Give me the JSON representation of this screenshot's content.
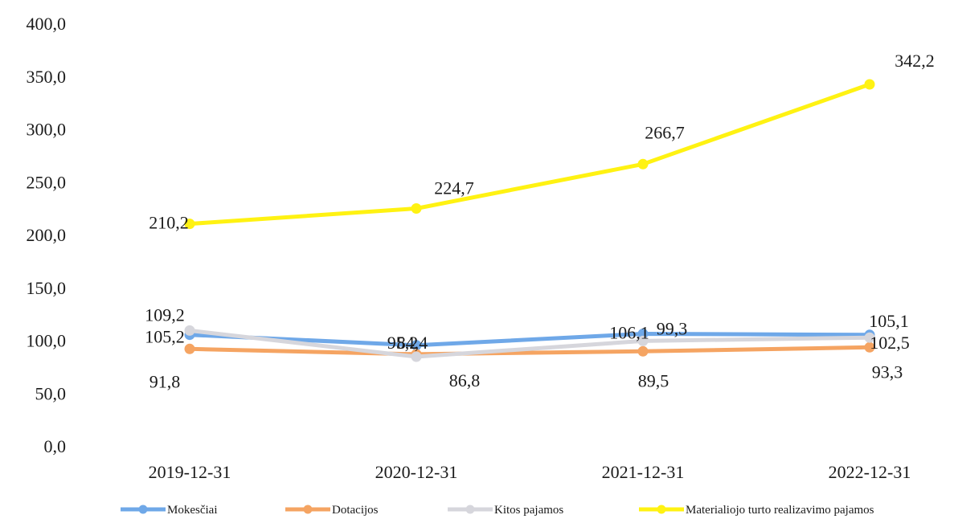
{
  "chart_data": {
    "type": "line",
    "categories": [
      "2019-12-31",
      "2020-12-31",
      "2021-12-31",
      "2022-12-31"
    ],
    "ylim": [
      0,
      400
    ],
    "y_ticks": [
      "0,0",
      "50,0",
      "100,0",
      "150,0",
      "200,0",
      "250,0",
      "300,0",
      "350,0",
      "400,0"
    ],
    "grid": false,
    "legend_position": "bottom",
    "series": [
      {
        "name": "Mokesčiai",
        "color": "#6fa8e8",
        "values": [
          105.2,
          95.2,
          106.1,
          105.1
        ],
        "labels": [
          "105,2",
          "95,2",
          "106,1",
          "105,1"
        ]
      },
      {
        "name": "Dotacijos",
        "color": "#f5a462",
        "values": [
          91.8,
          86.8,
          89.5,
          93.3
        ],
        "labels": [
          "91,8",
          "86,8",
          "89,5",
          "93,3"
        ]
      },
      {
        "name": "Kitos pajamos",
        "color": "#d6d6dc",
        "values": [
          109.2,
          84.4,
          99.3,
          102.5
        ],
        "labels": [
          "109,2",
          "84,4",
          "99,3",
          "102,5"
        ]
      },
      {
        "name": "Materialiojo turto realizavimo pajamos",
        "color": "#fff212",
        "values": [
          210.2,
          224.7,
          266.7,
          342.2
        ],
        "labels": [
          "210,2",
          "224,7",
          "266,7",
          "342,2"
        ]
      }
    ]
  }
}
